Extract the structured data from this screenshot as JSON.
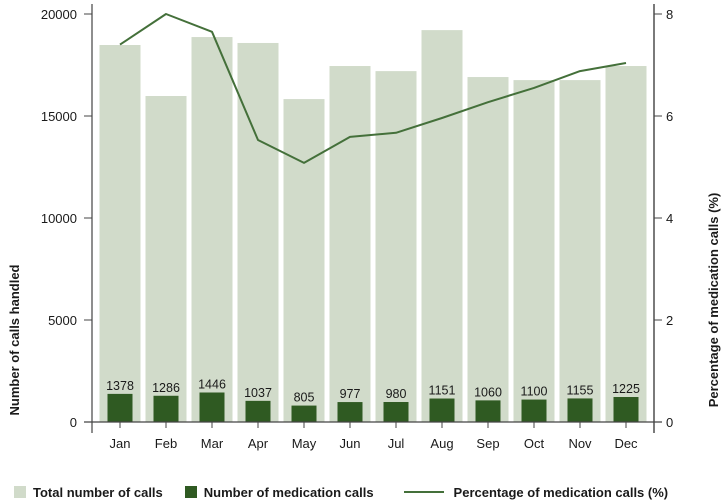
{
  "chart_data": {
    "type": "bar",
    "title": "",
    "xlabel": "",
    "ylabel": "Number of calls handled",
    "y2label": "Percentage of medication calls (%)",
    "ylim": [
      0,
      20000
    ],
    "y2lim": [
      0,
      8
    ],
    "yticks": [
      "0",
      "5000",
      "10000",
      "15000",
      "20000"
    ],
    "y2ticks": [
      "0",
      "2",
      "4",
      "6",
      "8"
    ],
    "grid": false,
    "legend_position": "bottom",
    "categories": [
      "Jan",
      "Feb",
      "Mar",
      "Apr",
      "May",
      "Jun",
      "Jul",
      "Aug",
      "Sep",
      "Oct",
      "Nov",
      "Dec"
    ],
    "series": [
      {
        "name": "Total number of calls",
        "type": "bar",
        "axis": "left",
        "color": "#d1dbca",
        "values": [
          18480,
          15980,
          18870,
          18580,
          15830,
          17450,
          17200,
          19210,
          16910,
          16760,
          16760,
          17450
        ]
      },
      {
        "name": "Number of medication calls",
        "type": "bar",
        "axis": "left",
        "color": "#2f5a22",
        "values": [
          1378,
          1286,
          1446,
          1037,
          805,
          977,
          980,
          1151,
          1060,
          1100,
          1155,
          1225
        ],
        "labels": [
          "1378",
          "1286",
          "1446",
          "1037",
          "805",
          "977",
          "980",
          "1151",
          "1060",
          "1100",
          "1155",
          "1225"
        ]
      },
      {
        "name": "Percentage of medication calls (%)",
        "type": "line",
        "axis": "right",
        "color": "#44703a",
        "values": [
          7.4,
          8.0,
          7.65,
          5.53,
          5.08,
          5.59,
          5.67,
          5.96,
          6.27,
          6.55,
          6.88,
          7.04
        ]
      }
    ]
  },
  "legend": [
    {
      "label": "Total number of calls"
    },
    {
      "label": "Number of medication calls"
    },
    {
      "label": "Percentage of medication calls (%)"
    }
  ]
}
